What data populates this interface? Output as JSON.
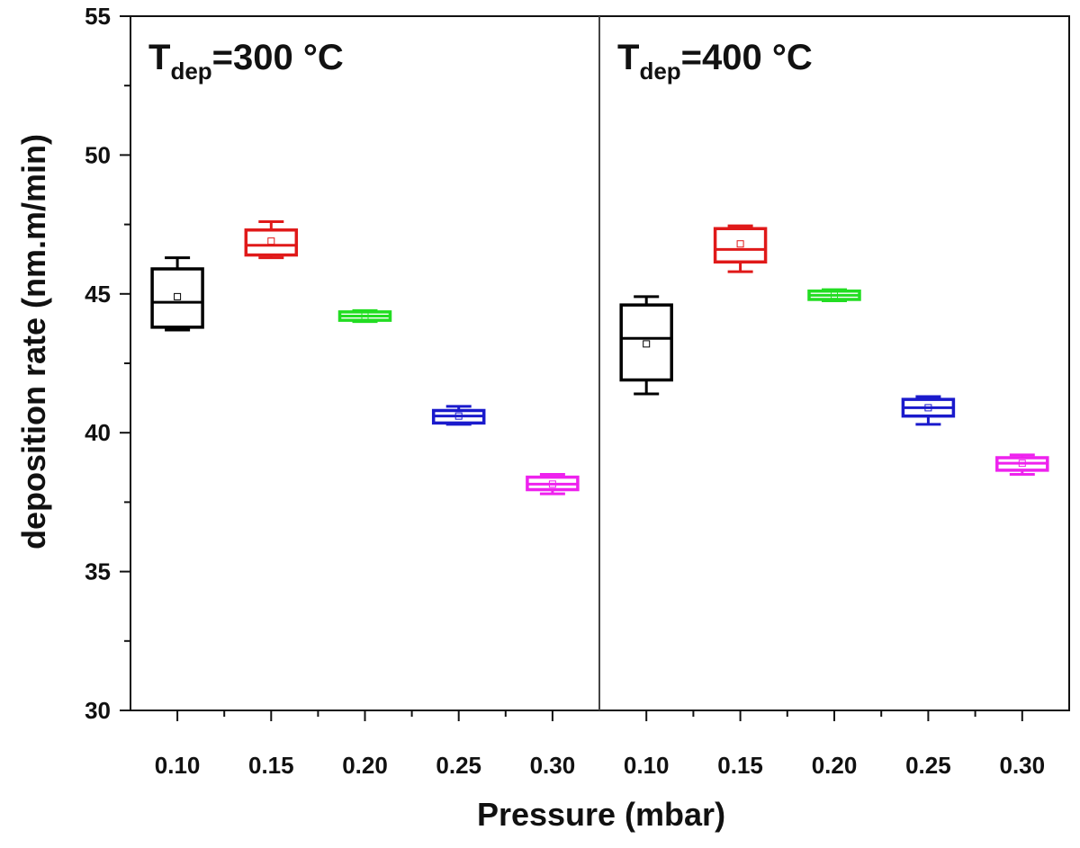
{
  "chart_data": {
    "type": "boxplot",
    "xlabel": "Pressure (mbar)",
    "ylabel": "deposition rate (nm.m/min)",
    "ylim": [
      30,
      55
    ],
    "y_ticks": [
      "30",
      "35",
      "40",
      "45",
      "50",
      "55"
    ],
    "categories": [
      "0.10",
      "0.15",
      "0.20",
      "0.25",
      "0.30"
    ],
    "colors": [
      "#000000",
      "#e01919",
      "#22dd22",
      "#1a1acc",
      "#ee22ee"
    ],
    "panels": [
      {
        "title_main": "T",
        "title_sub": "dep",
        "title_rest": "=300 °C",
        "boxes": [
          {
            "category": "0.10",
            "whisker_low": 43.7,
            "q1": 43.8,
            "median": 44.7,
            "q3": 45.9,
            "whisker_high": 46.3,
            "mean": 44.9
          },
          {
            "category": "0.15",
            "whisker_low": 46.3,
            "q1": 46.4,
            "median": 46.75,
            "q3": 47.3,
            "whisker_high": 47.6,
            "mean": 46.9
          },
          {
            "category": "0.20",
            "whisker_low": 44.0,
            "q1": 44.05,
            "median": 44.2,
            "q3": 44.35,
            "whisker_high": 44.4,
            "mean": 44.2
          },
          {
            "category": "0.25",
            "whisker_low": 40.3,
            "q1": 40.35,
            "median": 40.6,
            "q3": 40.8,
            "whisker_high": 40.95,
            "mean": 40.6
          },
          {
            "category": "0.30",
            "whisker_low": 37.8,
            "q1": 37.95,
            "median": 38.15,
            "q3": 38.4,
            "whisker_high": 38.5,
            "mean": 38.15
          }
        ]
      },
      {
        "title_main": "T",
        "title_sub": "dep",
        "title_rest": "=400 °C",
        "boxes": [
          {
            "category": "0.10",
            "whisker_low": 41.4,
            "q1": 41.9,
            "median": 43.4,
            "q3": 44.6,
            "whisker_high": 44.9,
            "mean": 43.2
          },
          {
            "category": "0.15",
            "whisker_low": 45.8,
            "q1": 46.15,
            "median": 46.6,
            "q3": 47.35,
            "whisker_high": 47.45,
            "mean": 46.8
          },
          {
            "category": "0.20",
            "whisker_low": 44.75,
            "q1": 44.8,
            "median": 44.95,
            "q3": 45.1,
            "whisker_high": 45.15,
            "mean": 44.95
          },
          {
            "category": "0.25",
            "whisker_low": 40.3,
            "q1": 40.6,
            "median": 40.9,
            "q3": 41.2,
            "whisker_high": 41.3,
            "mean": 40.9
          },
          {
            "category": "0.30",
            "whisker_low": 38.5,
            "q1": 38.65,
            "median": 38.9,
            "q3": 39.1,
            "whisker_high": 39.2,
            "mean": 38.9
          }
        ]
      }
    ]
  }
}
